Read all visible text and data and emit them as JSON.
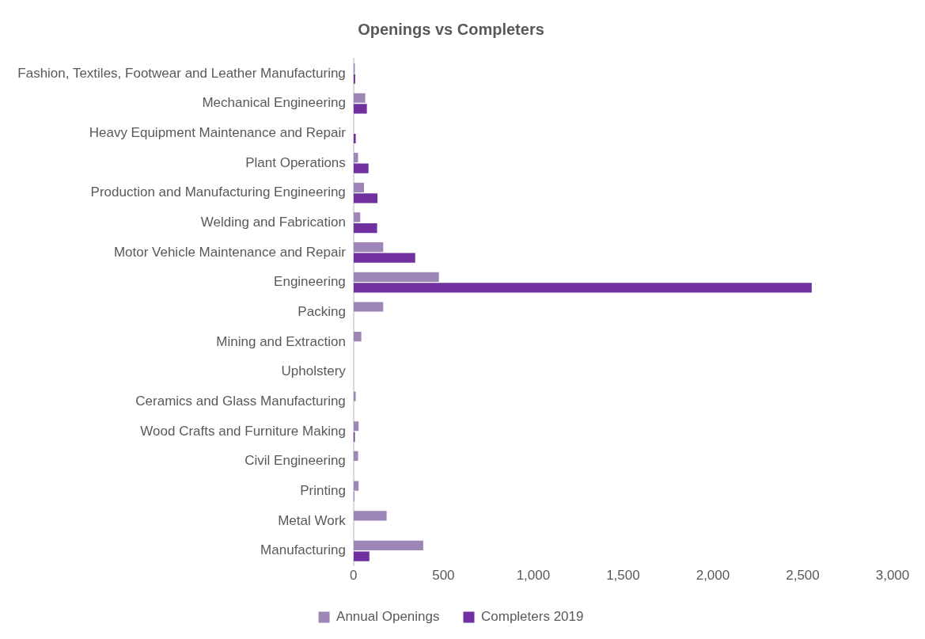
{
  "chart_data": {
    "type": "bar",
    "orientation": "horizontal",
    "title": "Openings vs Completers",
    "categories": [
      "Fashion, Textiles, Footwear and Leather Manufacturing",
      "Mechanical Engineering",
      "Heavy Equipment Maintenance and Repair",
      "Plant Operations",
      "Production and Manufacturing Engineering",
      "Welding and Fabrication",
      "Motor Vehicle Maintenance and Repair",
      "Engineering",
      "Packing",
      "Mining and Extraction",
      "Upholstery",
      "Ceramics and Glass Manufacturing",
      "Wood Crafts and Furniture Making",
      "Civil Engineering",
      "Printing",
      "Metal Work",
      "Manufacturing"
    ],
    "series": [
      {
        "name": "Annual Openings",
        "color": "#9e86b8",
        "values": [
          7,
          65,
          0,
          25,
          58,
          37,
          165,
          475,
          165,
          43,
          null,
          12,
          28,
          25,
          28,
          184,
          388
        ]
      },
      {
        "name": "Completers 2019",
        "color": "#7030a0",
        "values": [
          9,
          74,
          12,
          83,
          133,
          131,
          343,
          2550,
          0,
          0,
          0,
          null,
          7,
          null,
          3,
          0,
          88
        ]
      }
    ],
    "xlim": [
      0,
      3000
    ],
    "xticks": [
      {
        "value": 0,
        "label": "0"
      },
      {
        "value": 500,
        "label": "500"
      },
      {
        "value": 1000,
        "label": "1,000"
      },
      {
        "value": 1500,
        "label": "1,500"
      },
      {
        "value": 2000,
        "label": "2,000"
      },
      {
        "value": 2500,
        "label": "2,500"
      },
      {
        "value": 3000,
        "label": "3,000"
      }
    ],
    "grid": false,
    "legend": "bottom"
  }
}
